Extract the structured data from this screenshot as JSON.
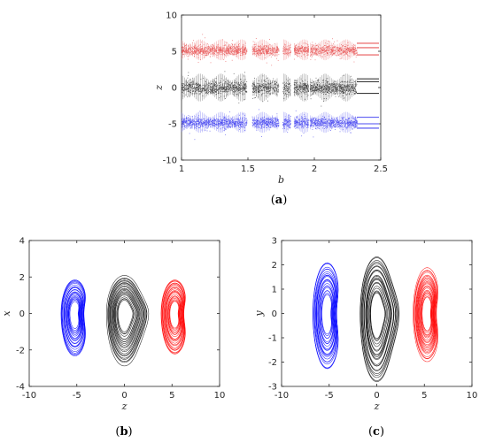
{
  "chart_data": [
    {
      "id": "a",
      "type": "scatter",
      "caption": "a",
      "xlabel": "b",
      "ylabel": "z",
      "xlim": [
        1,
        2.5
      ],
      "ylim": [
        -10,
        10
      ],
      "xticks": [
        1,
        1.5,
        2,
        2.5
      ],
      "yticks": [
        -10,
        -5,
        0,
        5,
        10
      ],
      "grid": false,
      "gaps": [
        [
          1.49,
          1.53
        ],
        [
          1.73,
          1.76
        ],
        [
          1.82,
          1.845
        ],
        [
          1.955,
          1.965
        ]
      ],
      "series": [
        {
          "color": "#e8595a",
          "center": 5.2,
          "spread": 1.2,
          "tail_levels": [
            4.5,
            5.5,
            6.1
          ]
        },
        {
          "color": "#3a3a3a",
          "center": 0.0,
          "spread": 1.6,
          "tail_levels": [
            -0.8,
            0.8,
            1.2
          ]
        },
        {
          "color": "#4b4bf0",
          "center": -4.8,
          "spread": 1.2,
          "tail_levels": [
            -4.1,
            -5.0,
            -5.6
          ]
        }
      ],
      "tail_start": 2.32
    },
    {
      "id": "b",
      "type": "line",
      "caption": "b",
      "xlabel": "z",
      "ylabel": "x",
      "xlim": [
        -10,
        10
      ],
      "ylim": [
        -4,
        4
      ],
      "xticks": [
        -10,
        -5,
        0,
        5,
        10
      ],
      "yticks": [
        -4,
        -2,
        0,
        2,
        4
      ],
      "grid": false,
      "series": [
        {
          "color": "#0000ff",
          "center_z": -5.2,
          "rx": 1.5,
          "ry_top": 1.9,
          "ry_bottom": 2.4,
          "flip": false
        },
        {
          "color": "#000000",
          "center_z": 0.0,
          "rx": 1.9,
          "ry_top": 2.1,
          "ry_bottom": 2.9,
          "flip": true
        },
        {
          "color": "#ff0000",
          "center_z": 5.3,
          "rx": 1.5,
          "ry_top": 1.9,
          "ry_bottom": 2.3,
          "flip": false
        }
      ]
    },
    {
      "id": "c",
      "type": "line",
      "caption": "c",
      "xlabel": "z",
      "ylabel": "y",
      "xlim": [
        -10,
        10
      ],
      "ylim": [
        -3,
        3
      ],
      "xticks": [
        -10,
        -5,
        0,
        5,
        10
      ],
      "yticks": [
        -3,
        -2,
        -1,
        0,
        1,
        2,
        3
      ],
      "grid": false,
      "series": [
        {
          "color": "#0000ff",
          "center_z": -5.2,
          "rx": 1.6,
          "ry_top": 2.2,
          "ry_bottom": 2.4,
          "flip": false
        },
        {
          "color": "#000000",
          "center_z": 0.0,
          "rx": 1.8,
          "ry_top": 2.4,
          "ry_bottom": 2.9,
          "flip": true
        },
        {
          "color": "#ff0000",
          "center_z": 5.3,
          "rx": 1.5,
          "ry_top": 1.9,
          "ry_bottom": 2.0,
          "flip": false
        }
      ]
    }
  ]
}
